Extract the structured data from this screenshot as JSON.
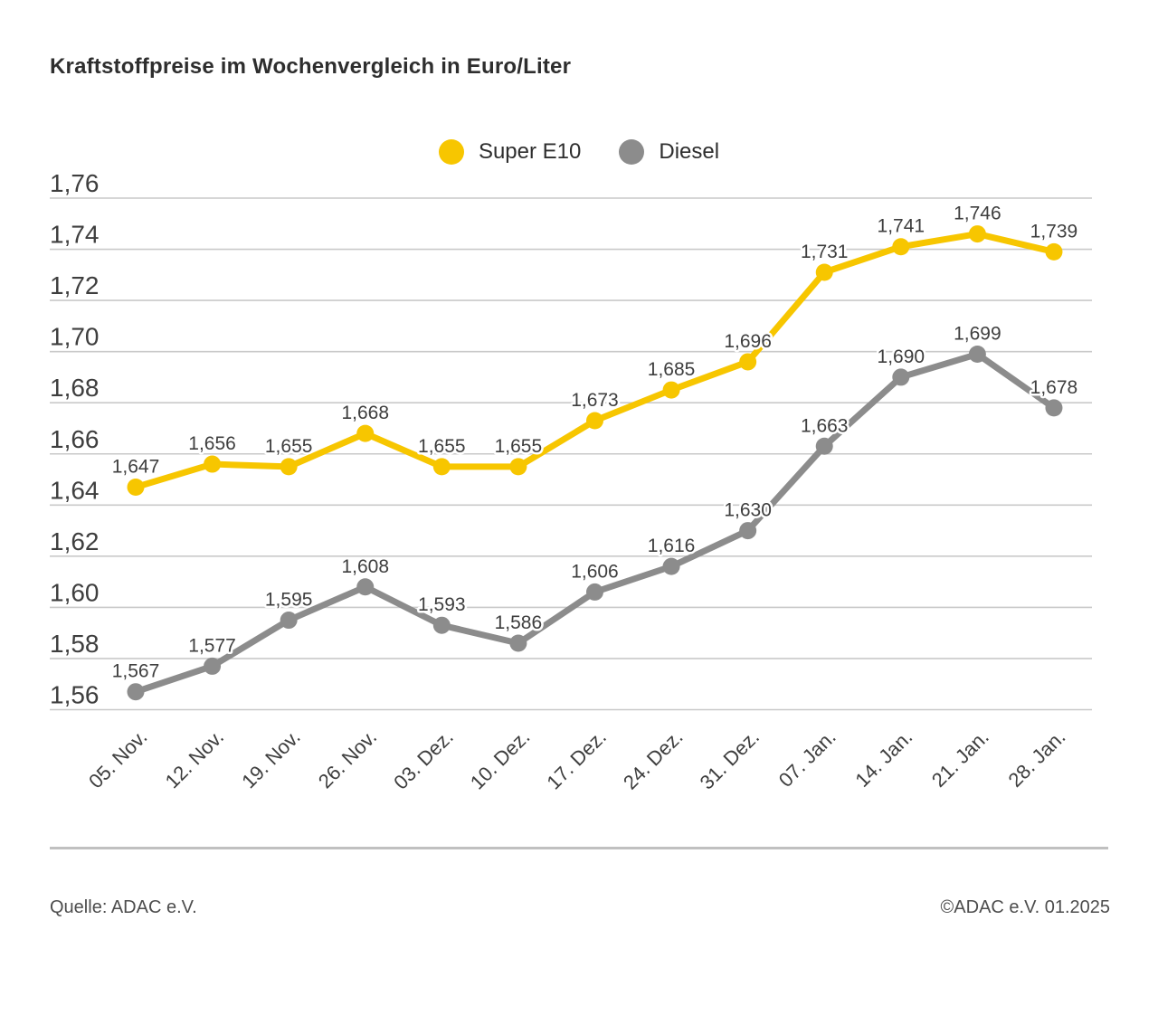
{
  "title": "Kraftstoffpreise im Wochenvergleich in Euro/Liter",
  "legend": {
    "items": [
      {
        "label": "Super E10",
        "color": "#f7c600"
      },
      {
        "label": "Diesel",
        "color": "#8c8c8c"
      }
    ]
  },
  "chart_data": {
    "type": "line",
    "title": "Kraftstoffpreise im Wochenvergleich in Euro/Liter",
    "categories": [
      "05. Nov.",
      "12. Nov.",
      "19. Nov.",
      "26. Nov.",
      "03. Dez.",
      "10. Dez.",
      "17. Dez.",
      "24. Dez.",
      "31. Dez.",
      "07. Jan.",
      "14. Jan.",
      "21. Jan.",
      "28. Jan."
    ],
    "series": [
      {
        "name": "Super E10",
        "color": "#f7c600",
        "values": [
          1.647,
          1.656,
          1.655,
          1.668,
          1.655,
          1.655,
          1.673,
          1.685,
          1.696,
          1.731,
          1.741,
          1.746,
          1.739
        ]
      },
      {
        "name": "Diesel",
        "color": "#8c8c8c",
        "values": [
          1.567,
          1.577,
          1.595,
          1.608,
          1.593,
          1.586,
          1.606,
          1.616,
          1.63,
          1.663,
          1.69,
          1.699,
          1.678
        ]
      }
    ],
    "ylim": [
      1.56,
      1.76
    ],
    "ytick_step": 0.02,
    "decimal_separator": ",",
    "unit": "Euro/Liter",
    "grid": "horizontal",
    "legend_position": "top-center",
    "point_labels": true,
    "colors": {
      "gridline": "#c9c9c9",
      "axis_text": "#3e3e3e",
      "point_label_text": "#3e3e3e"
    }
  },
  "footer": {
    "source": "Quelle: ADAC e.V.",
    "copyright": "©ADAC e.V. 01.2025"
  }
}
